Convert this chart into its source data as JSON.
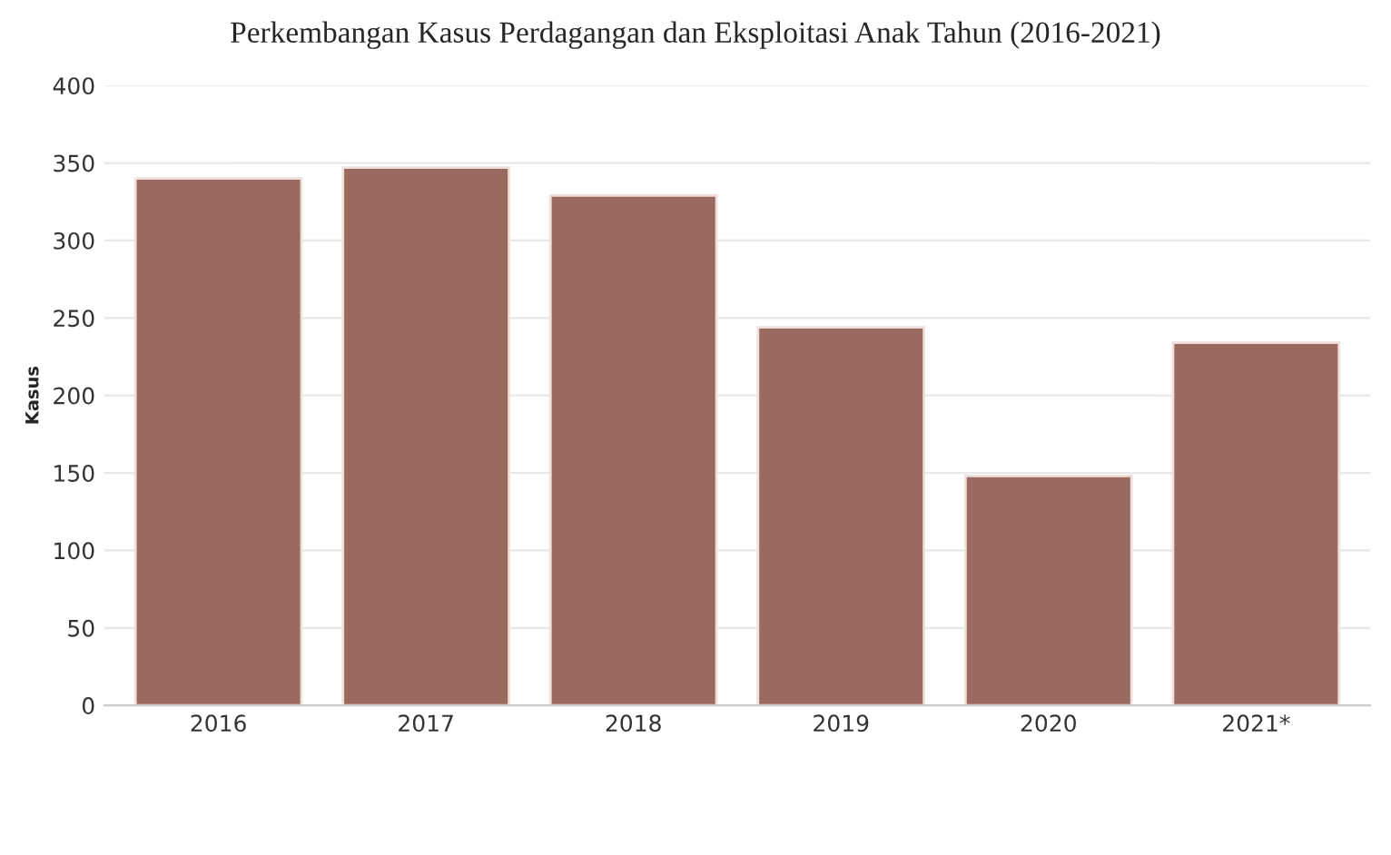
{
  "chart_data": {
    "type": "bar",
    "title": "Perkembangan Kasus Perdagangan dan Eksploitasi Anak Tahun (2016-2021)",
    "ylabel": "Kasus",
    "categories": [
      "2016",
      "2017",
      "2018",
      "2019",
      "2020",
      "2021*"
    ],
    "values": [
      340,
      347,
      329,
      244,
      148,
      234
    ],
    "color": "#9a6a60",
    "ylim": [
      0,
      400
    ],
    "yticks": [
      0,
      50,
      100,
      150,
      200,
      250,
      300,
      350,
      400
    ],
    "grid": "y"
  }
}
